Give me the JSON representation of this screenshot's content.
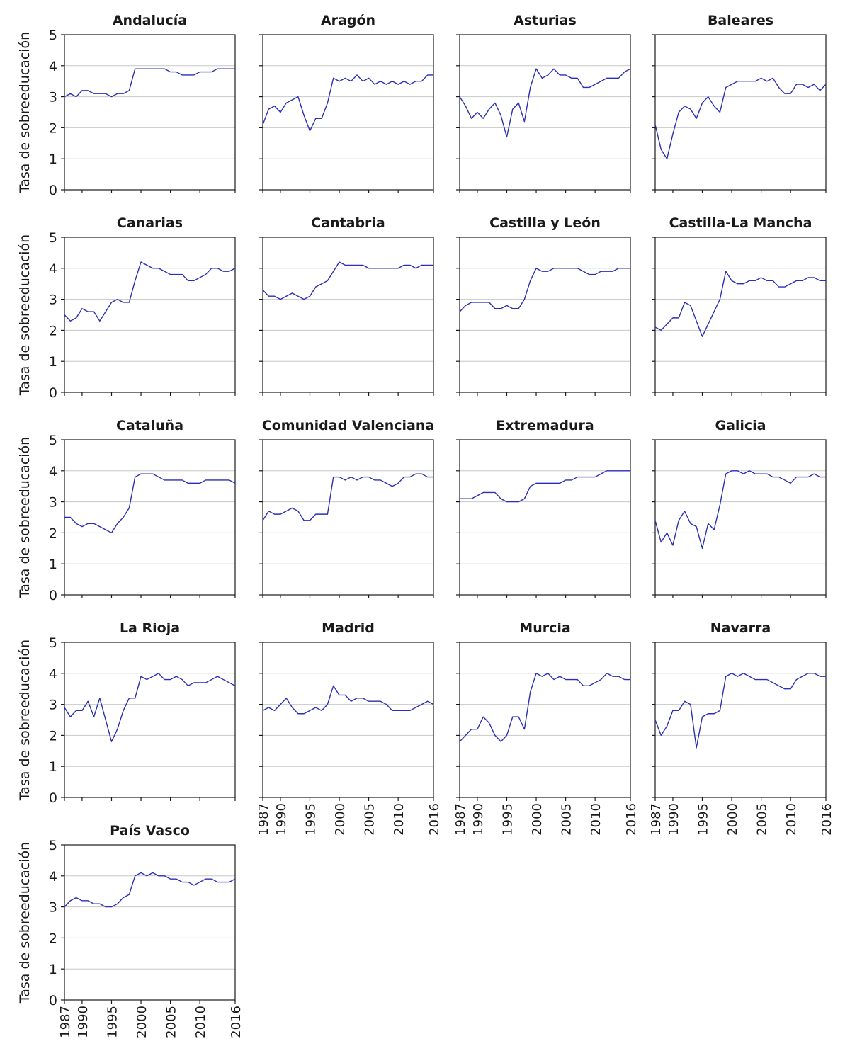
{
  "colors": {
    "line": "#2b2fb5",
    "grid": "#c8c8c8",
    "axis": "#1a1a1a"
  },
  "chart_data": {
    "type": "line",
    "ylabel": "Tasa de sobreeducación",
    "ylim": [
      0,
      5
    ],
    "yticks": [
      0,
      1,
      2,
      3,
      4,
      5
    ],
    "xlim": [
      1987,
      2016
    ],
    "xticks": [
      1987,
      1990,
      1995,
      2000,
      2005,
      2010,
      2016
    ],
    "grid": "horizontal",
    "note": "",
    "panels": [
      {
        "title": "Andalucía",
        "x": [
          1987,
          1988,
          1989,
          1990,
          1991,
          1992,
          1993,
          1994,
          1995,
          1996,
          1997,
          1998,
          1999,
          2000,
          2001,
          2002,
          2003,
          2004,
          2005,
          2006,
          2007,
          2008,
          2009,
          2010,
          2011,
          2012,
          2013,
          2014,
          2015,
          2016
        ],
        "y": [
          3.0,
          3.1,
          3.0,
          3.2,
          3.2,
          3.1,
          3.1,
          3.1,
          3.0,
          3.1,
          3.1,
          3.2,
          3.9,
          3.9,
          3.9,
          3.9,
          3.9,
          3.9,
          3.8,
          3.8,
          3.7,
          3.7,
          3.7,
          3.8,
          3.8,
          3.8,
          3.9,
          3.9,
          3.9,
          3.9
        ]
      },
      {
        "title": "Aragón",
        "x": [
          1987,
          1988,
          1989,
          1990,
          1991,
          1992,
          1993,
          1994,
          1995,
          1996,
          1997,
          1998,
          1999,
          2000,
          2001,
          2002,
          2003,
          2004,
          2005,
          2006,
          2007,
          2008,
          2009,
          2010,
          2011,
          2012,
          2013,
          2014,
          2015,
          2016
        ],
        "y": [
          2.1,
          2.6,
          2.7,
          2.5,
          2.8,
          2.9,
          3.0,
          2.4,
          1.9,
          2.3,
          2.3,
          2.8,
          3.6,
          3.5,
          3.6,
          3.5,
          3.7,
          3.5,
          3.6,
          3.4,
          3.5,
          3.4,
          3.5,
          3.4,
          3.5,
          3.4,
          3.5,
          3.5,
          3.7,
          3.7
        ]
      },
      {
        "title": "Asturias",
        "x": [
          1987,
          1988,
          1989,
          1990,
          1991,
          1992,
          1993,
          1994,
          1995,
          1996,
          1997,
          1998,
          1999,
          2000,
          2001,
          2002,
          2003,
          2004,
          2005,
          2006,
          2007,
          2008,
          2009,
          2010,
          2011,
          2012,
          2013,
          2014,
          2015,
          2016
        ],
        "y": [
          3.0,
          2.7,
          2.3,
          2.5,
          2.3,
          2.6,
          2.8,
          2.4,
          1.7,
          2.6,
          2.8,
          2.2,
          3.3,
          3.9,
          3.6,
          3.7,
          3.9,
          3.7,
          3.7,
          3.6,
          3.6,
          3.3,
          3.3,
          3.4,
          3.5,
          3.6,
          3.6,
          3.6,
          3.8,
          3.9
        ]
      },
      {
        "title": "Baleares",
        "x": [
          1987,
          1988,
          1989,
          1990,
          1991,
          1992,
          1993,
          1994,
          1995,
          1996,
          1997,
          1998,
          1999,
          2000,
          2001,
          2002,
          2003,
          2004,
          2005,
          2006,
          2007,
          2008,
          2009,
          2010,
          2011,
          2012,
          2013,
          2014,
          2015,
          2016
        ],
        "y": [
          2.1,
          1.3,
          1.0,
          1.8,
          2.5,
          2.7,
          2.6,
          2.3,
          2.8,
          3.0,
          2.7,
          2.5,
          3.3,
          3.4,
          3.5,
          3.5,
          3.5,
          3.5,
          3.6,
          3.5,
          3.6,
          3.3,
          3.1,
          3.1,
          3.4,
          3.4,
          3.3,
          3.4,
          3.2,
          3.4
        ]
      },
      {
        "title": "Canarias",
        "x": [
          1987,
          1988,
          1989,
          1990,
          1991,
          1992,
          1993,
          1994,
          1995,
          1996,
          1997,
          1998,
          1999,
          2000,
          2001,
          2002,
          2003,
          2004,
          2005,
          2006,
          2007,
          2008,
          2009,
          2010,
          2011,
          2012,
          2013,
          2014,
          2015,
          2016
        ],
        "y": [
          2.5,
          2.3,
          2.4,
          2.7,
          2.6,
          2.6,
          2.3,
          2.6,
          2.9,
          3.0,
          2.9,
          2.9,
          3.6,
          4.2,
          4.1,
          4.0,
          4.0,
          3.9,
          3.8,
          3.8,
          3.8,
          3.6,
          3.6,
          3.7,
          3.8,
          4.0,
          4.0,
          3.9,
          3.9,
          4.0
        ]
      },
      {
        "title": "Cantabria",
        "x": [
          1987,
          1988,
          1989,
          1990,
          1991,
          1992,
          1993,
          1994,
          1995,
          1996,
          1997,
          1998,
          1999,
          2000,
          2001,
          2002,
          2003,
          2004,
          2005,
          2006,
          2007,
          2008,
          2009,
          2010,
          2011,
          2012,
          2013,
          2014,
          2015,
          2016
        ],
        "y": [
          3.3,
          3.1,
          3.1,
          3.0,
          3.1,
          3.2,
          3.1,
          3.0,
          3.1,
          3.4,
          3.5,
          3.6,
          3.9,
          4.2,
          4.1,
          4.1,
          4.1,
          4.1,
          4.0,
          4.0,
          4.0,
          4.0,
          4.0,
          4.0,
          4.1,
          4.1,
          4.0,
          4.1,
          4.1,
          4.1
        ]
      },
      {
        "title": "Castilla y León",
        "x": [
          1987,
          1988,
          1989,
          1990,
          1991,
          1992,
          1993,
          1994,
          1995,
          1996,
          1997,
          1998,
          1999,
          2000,
          2001,
          2002,
          2003,
          2004,
          2005,
          2006,
          2007,
          2008,
          2009,
          2010,
          2011,
          2012,
          2013,
          2014,
          2015,
          2016
        ],
        "y": [
          2.6,
          2.8,
          2.9,
          2.9,
          2.9,
          2.9,
          2.7,
          2.7,
          2.8,
          2.7,
          2.7,
          3.0,
          3.6,
          4.0,
          3.9,
          3.9,
          4.0,
          4.0,
          4.0,
          4.0,
          4.0,
          3.9,
          3.8,
          3.8,
          3.9,
          3.9,
          3.9,
          4.0,
          4.0,
          4.0
        ]
      },
      {
        "title": "Castilla-La Mancha",
        "x": [
          1987,
          1988,
          1989,
          1990,
          1991,
          1992,
          1993,
          1994,
          1995,
          1996,
          1997,
          1998,
          1999,
          2000,
          2001,
          2002,
          2003,
          2004,
          2005,
          2006,
          2007,
          2008,
          2009,
          2010,
          2011,
          2012,
          2013,
          2014,
          2015,
          2016
        ],
        "y": [
          2.1,
          2.0,
          2.2,
          2.4,
          2.4,
          2.9,
          2.8,
          2.3,
          1.8,
          2.2,
          2.6,
          3.0,
          3.9,
          3.6,
          3.5,
          3.5,
          3.6,
          3.6,
          3.7,
          3.6,
          3.6,
          3.4,
          3.4,
          3.5,
          3.6,
          3.6,
          3.7,
          3.7,
          3.6,
          3.6
        ]
      },
      {
        "title": "Cataluña",
        "x": [
          1987,
          1988,
          1989,
          1990,
          1991,
          1992,
          1993,
          1994,
          1995,
          1996,
          1997,
          1998,
          1999,
          2000,
          2001,
          2002,
          2003,
          2004,
          2005,
          2006,
          2007,
          2008,
          2009,
          2010,
          2011,
          2012,
          2013,
          2014,
          2015,
          2016
        ],
        "y": [
          2.5,
          2.5,
          2.3,
          2.2,
          2.3,
          2.3,
          2.2,
          2.1,
          2.0,
          2.3,
          2.5,
          2.8,
          3.8,
          3.9,
          3.9,
          3.9,
          3.8,
          3.7,
          3.7,
          3.7,
          3.7,
          3.6,
          3.6,
          3.6,
          3.7,
          3.7,
          3.7,
          3.7,
          3.7,
          3.6
        ]
      },
      {
        "title": "Comunidad Valenciana",
        "x": [
          1987,
          1988,
          1989,
          1990,
          1991,
          1992,
          1993,
          1994,
          1995,
          1996,
          1997,
          1998,
          1999,
          2000,
          2001,
          2002,
          2003,
          2004,
          2005,
          2006,
          2007,
          2008,
          2009,
          2010,
          2011,
          2012,
          2013,
          2014,
          2015,
          2016
        ],
        "y": [
          2.4,
          2.7,
          2.6,
          2.6,
          2.7,
          2.8,
          2.7,
          2.4,
          2.4,
          2.6,
          2.6,
          2.6,
          3.8,
          3.8,
          3.7,
          3.8,
          3.7,
          3.8,
          3.8,
          3.7,
          3.7,
          3.6,
          3.5,
          3.6,
          3.8,
          3.8,
          3.9,
          3.9,
          3.8,
          3.8
        ]
      },
      {
        "title": "Extremadura",
        "x": [
          1987,
          1988,
          1989,
          1990,
          1991,
          1992,
          1993,
          1994,
          1995,
          1996,
          1997,
          1998,
          1999,
          2000,
          2001,
          2002,
          2003,
          2004,
          2005,
          2006,
          2007,
          2008,
          2009,
          2010,
          2011,
          2012,
          2013,
          2014,
          2015,
          2016
        ],
        "y": [
          3.1,
          3.1,
          3.1,
          3.2,
          3.3,
          3.3,
          3.3,
          3.1,
          3.0,
          3.0,
          3.0,
          3.1,
          3.5,
          3.6,
          3.6,
          3.6,
          3.6,
          3.6,
          3.7,
          3.7,
          3.8,
          3.8,
          3.8,
          3.8,
          3.9,
          4.0,
          4.0,
          4.0,
          4.0,
          4.0
        ]
      },
      {
        "title": "Galicia",
        "x": [
          1987,
          1988,
          1989,
          1990,
          1991,
          1992,
          1993,
          1994,
          1995,
          1996,
          1997,
          1998,
          1999,
          2000,
          2001,
          2002,
          2003,
          2004,
          2005,
          2006,
          2007,
          2008,
          2009,
          2010,
          2011,
          2012,
          2013,
          2014,
          2015,
          2016
        ],
        "y": [
          2.4,
          1.7,
          2.0,
          1.6,
          2.4,
          2.7,
          2.3,
          2.2,
          1.5,
          2.3,
          2.1,
          2.9,
          3.9,
          4.0,
          4.0,
          3.9,
          4.0,
          3.9,
          3.9,
          3.9,
          3.8,
          3.8,
          3.7,
          3.6,
          3.8,
          3.8,
          3.8,
          3.9,
          3.8,
          3.8
        ]
      },
      {
        "title": "La Rioja",
        "x": [
          1987,
          1988,
          1989,
          1990,
          1991,
          1992,
          1993,
          1994,
          1995,
          1996,
          1997,
          1998,
          1999,
          2000,
          2001,
          2002,
          2003,
          2004,
          2005,
          2006,
          2007,
          2008,
          2009,
          2010,
          2011,
          2012,
          2013,
          2014,
          2015,
          2016
        ],
        "y": [
          2.9,
          2.6,
          2.8,
          2.8,
          3.1,
          2.6,
          3.2,
          2.5,
          1.8,
          2.2,
          2.8,
          3.2,
          3.2,
          3.9,
          3.8,
          3.9,
          4.0,
          3.8,
          3.8,
          3.9,
          3.8,
          3.6,
          3.7,
          3.7,
          3.7,
          3.8,
          3.9,
          3.8,
          3.7,
          3.6
        ]
      },
      {
        "title": "Madrid",
        "x": [
          1987,
          1988,
          1989,
          1990,
          1991,
          1992,
          1993,
          1994,
          1995,
          1996,
          1997,
          1998,
          1999,
          2000,
          2001,
          2002,
          2003,
          2004,
          2005,
          2006,
          2007,
          2008,
          2009,
          2010,
          2011,
          2012,
          2013,
          2014,
          2015,
          2016
        ],
        "y": [
          2.8,
          2.9,
          2.8,
          3.0,
          3.2,
          2.9,
          2.7,
          2.7,
          2.8,
          2.9,
          2.8,
          3.0,
          3.6,
          3.3,
          3.3,
          3.1,
          3.2,
          3.2,
          3.1,
          3.1,
          3.1,
          3.0,
          2.8,
          2.8,
          2.8,
          2.8,
          2.9,
          3.0,
          3.1,
          3.0
        ]
      },
      {
        "title": "Murcia",
        "x": [
          1987,
          1988,
          1989,
          1990,
          1991,
          1992,
          1993,
          1994,
          1995,
          1996,
          1997,
          1998,
          1999,
          2000,
          2001,
          2002,
          2003,
          2004,
          2005,
          2006,
          2007,
          2008,
          2009,
          2010,
          2011,
          2012,
          2013,
          2014,
          2015,
          2016
        ],
        "y": [
          1.8,
          2.0,
          2.2,
          2.2,
          2.6,
          2.4,
          2.0,
          1.8,
          2.0,
          2.6,
          2.6,
          2.2,
          3.4,
          4.0,
          3.9,
          4.0,
          3.8,
          3.9,
          3.8,
          3.8,
          3.8,
          3.6,
          3.6,
          3.7,
          3.8,
          4.0,
          3.9,
          3.9,
          3.8,
          3.8
        ]
      },
      {
        "title": "Navarra",
        "x": [
          1987,
          1988,
          1989,
          1990,
          1991,
          1992,
          1993,
          1994,
          1995,
          1996,
          1997,
          1998,
          1999,
          2000,
          2001,
          2002,
          2003,
          2004,
          2005,
          2006,
          2007,
          2008,
          2009,
          2010,
          2011,
          2012,
          2013,
          2014,
          2015,
          2016
        ],
        "y": [
          2.5,
          2.0,
          2.3,
          2.8,
          2.8,
          3.1,
          3.0,
          1.6,
          2.6,
          2.7,
          2.7,
          2.8,
          3.9,
          4.0,
          3.9,
          4.0,
          3.9,
          3.8,
          3.8,
          3.8,
          3.7,
          3.6,
          3.5,
          3.5,
          3.8,
          3.9,
          4.0,
          4.0,
          3.9,
          3.9
        ]
      },
      {
        "title": "País Vasco",
        "x": [
          1987,
          1988,
          1989,
          1990,
          1991,
          1992,
          1993,
          1994,
          1995,
          1996,
          1997,
          1998,
          1999,
          2000,
          2001,
          2002,
          2003,
          2004,
          2005,
          2006,
          2007,
          2008,
          2009,
          2010,
          2011,
          2012,
          2013,
          2014,
          2015,
          2016
        ],
        "y": [
          3.0,
          3.2,
          3.3,
          3.2,
          3.2,
          3.1,
          3.1,
          3.0,
          3.0,
          3.1,
          3.3,
          3.4,
          4.0,
          4.1,
          4.0,
          4.1,
          4.0,
          4.0,
          3.9,
          3.9,
          3.8,
          3.8,
          3.7,
          3.8,
          3.9,
          3.9,
          3.8,
          3.8,
          3.8,
          3.9
        ]
      }
    ]
  }
}
